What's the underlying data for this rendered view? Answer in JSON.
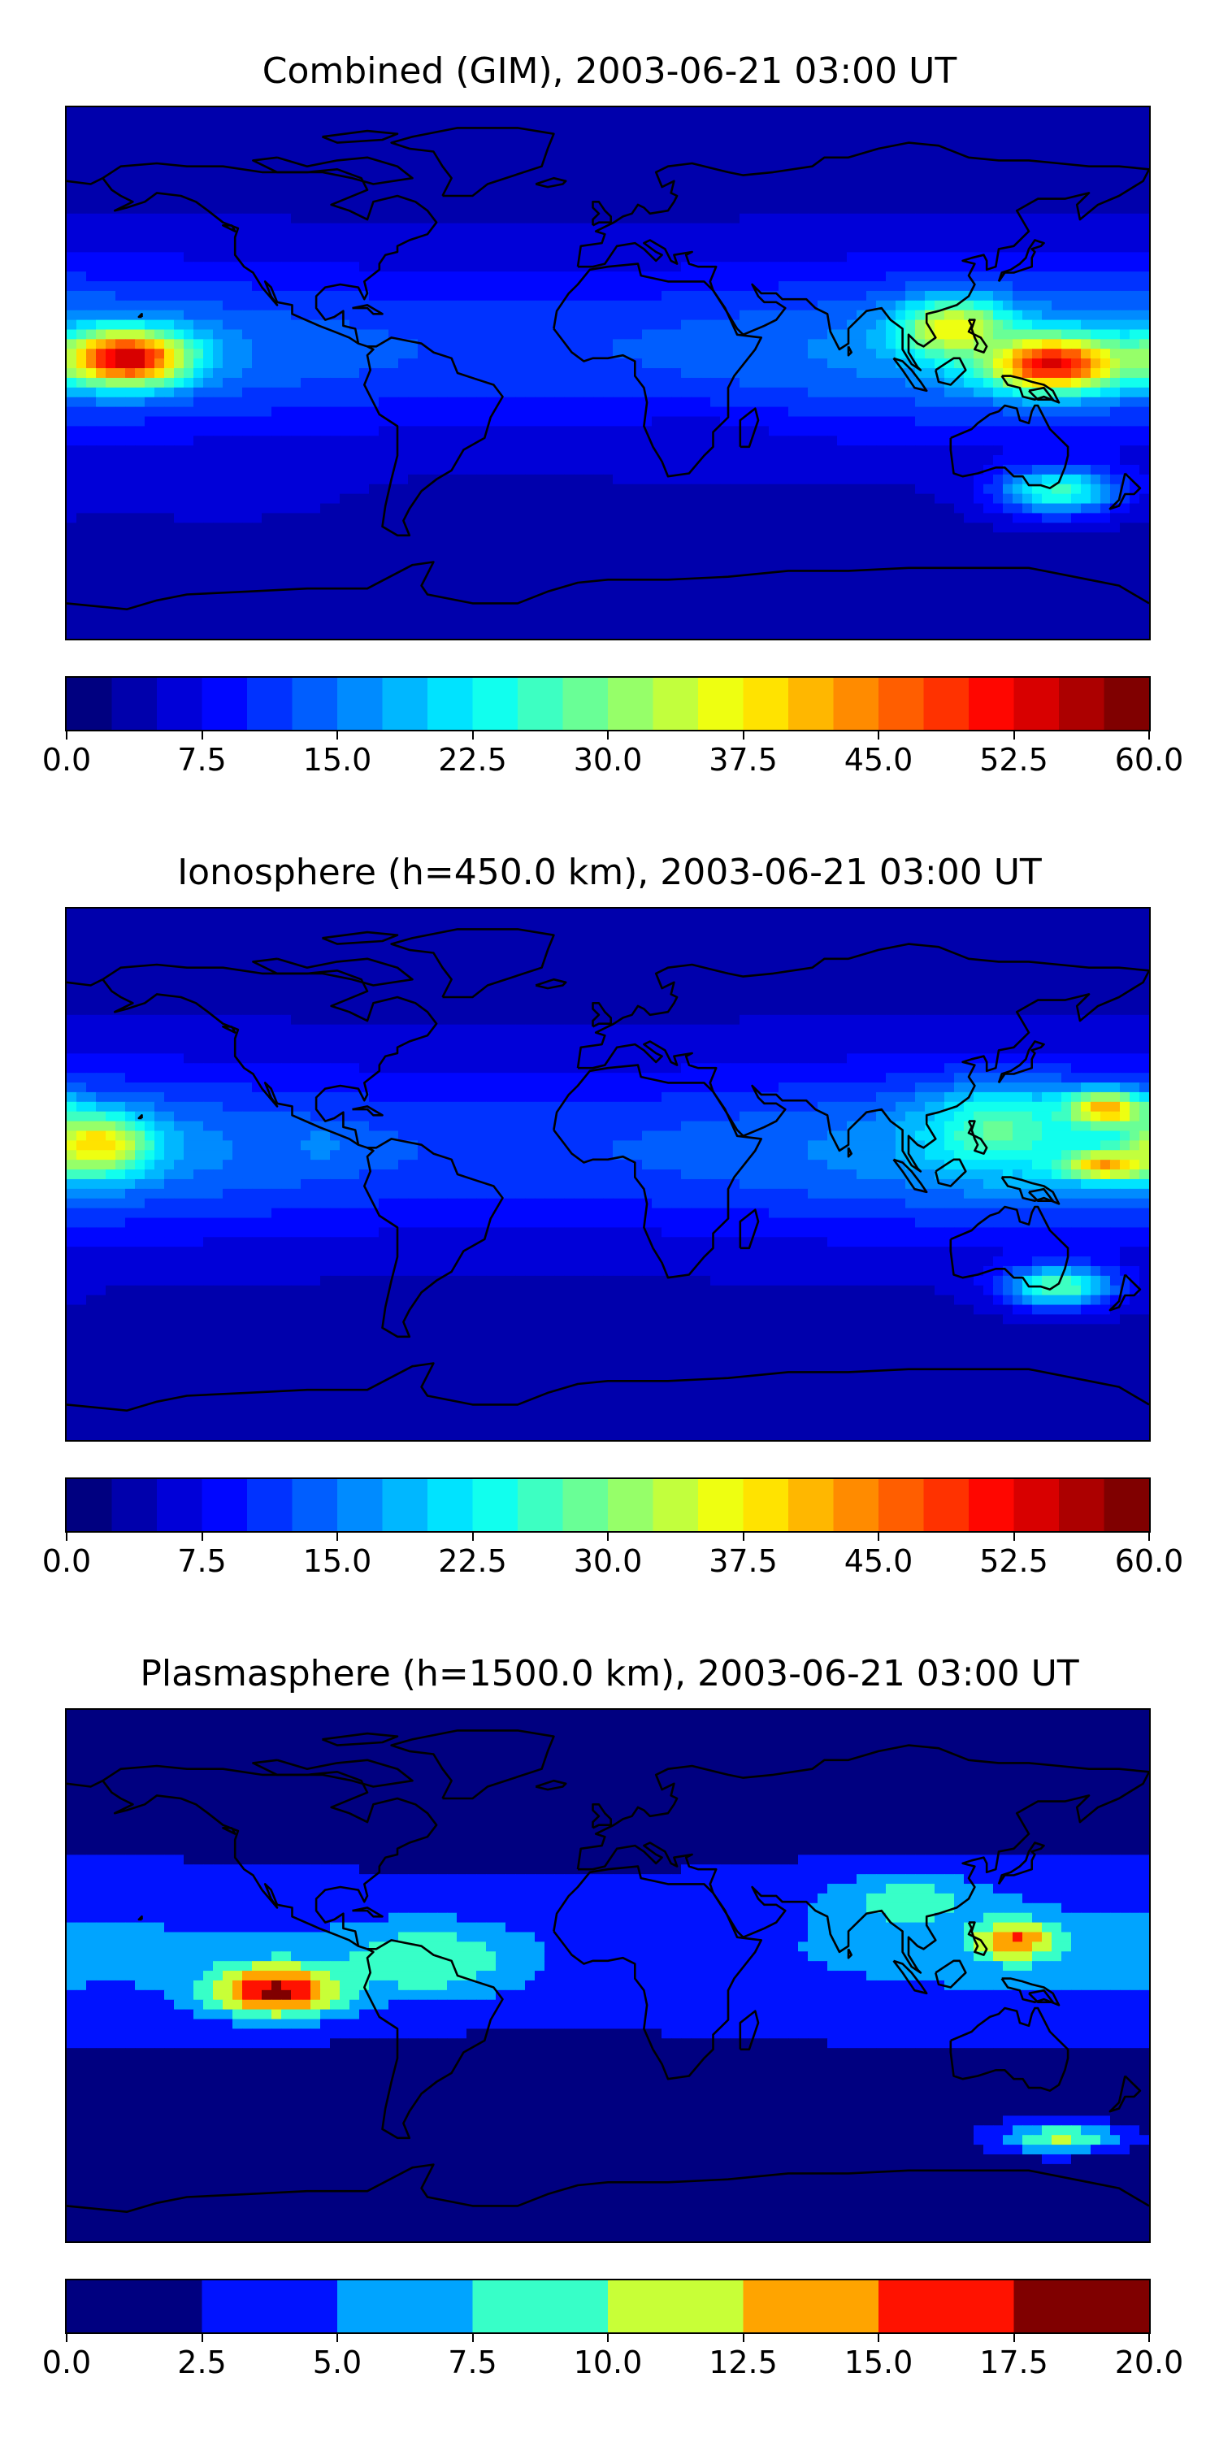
{
  "chart_data": [
    {
      "type": "heatmap",
      "title": "Combined (GIM), 2003-06-21 03:00 UT",
      "colorbar": {
        "vmin": 0.0,
        "vmax": 60.0,
        "levels": 24,
        "ticks": [
          "0.0",
          "7.5",
          "15.0",
          "22.5",
          "30.0",
          "37.5",
          "45.0",
          "52.5",
          "60.0"
        ]
      },
      "features": [
        {
          "lon": -160,
          "lat": 5,
          "value": 56,
          "spread_lon": 20,
          "spread_lat": 9
        },
        {
          "lon": 148,
          "lat": 3,
          "value": 54,
          "spread_lon": 22,
          "spread_lat": 9
        },
        {
          "lon": 115,
          "lat": 15,
          "value": 38,
          "spread_lon": 18,
          "spread_lat": 10
        },
        {
          "lon": -130,
          "lat": -40,
          "value": 6,
          "spread_lon": 40,
          "spread_lat": 10
        },
        {
          "lon": 150,
          "lat": -40,
          "value": 26,
          "spread_lon": 20,
          "spread_lat": 8
        },
        {
          "lon": 30,
          "lat": -25,
          "value": 6,
          "spread_lon": 25,
          "spread_lat": 10
        }
      ]
    },
    {
      "type": "heatmap",
      "title": "Ionosphere  (h=450.0 km), 2003-06-21 03:00 UT",
      "colorbar": {
        "vmin": 0.0,
        "vmax": 60.0,
        "levels": 24,
        "ticks": [
          "0.0",
          "7.5",
          "15.0",
          "22.5",
          "30.0",
          "37.5",
          "45.0",
          "52.5",
          "60.0"
        ]
      },
      "features": [
        {
          "lon": -170,
          "lat": 10,
          "value": 40,
          "spread_lon": 18,
          "spread_lat": 10
        },
        {
          "lon": 165,
          "lat": 22,
          "value": 44,
          "spread_lon": 14,
          "spread_lat": 6
        },
        {
          "lon": 165,
          "lat": 3,
          "value": 44,
          "spread_lon": 14,
          "spread_lat": 5
        },
        {
          "lon": 130,
          "lat": 15,
          "value": 28,
          "spread_lon": 25,
          "spread_lat": 14
        },
        {
          "lon": 150,
          "lat": -38,
          "value": 28,
          "spread_lon": 18,
          "spread_lat": 7
        },
        {
          "lon": -95,
          "lat": 10,
          "value": 16,
          "spread_lon": 10,
          "spread_lat": 6
        }
      ]
    },
    {
      "type": "heatmap",
      "title": "Plasmasphere (h=1500.0 km), 2003-06-21 03:00 UT",
      "colorbar": {
        "vmin": 0.0,
        "vmax": 20.0,
        "levels": 8,
        "ticks": [
          "0.0",
          "2.5",
          "5.0",
          "7.5",
          "10.0",
          "12.5",
          "15.0",
          "17.5",
          "20.0"
        ]
      },
      "features": [
        {
          "lon": -110,
          "lat": -5,
          "value": 18.5,
          "spread_lon": 22,
          "spread_lat": 9
        },
        {
          "lon": 135,
          "lat": 12,
          "value": 15.5,
          "spread_lon": 14,
          "spread_lat": 7
        },
        {
          "lon": -60,
          "lat": 5,
          "value": 10,
          "spread_lon": 30,
          "spread_lat": 12
        },
        {
          "lon": 100,
          "lat": 25,
          "value": 9,
          "spread_lon": 25,
          "spread_lat": 9
        },
        {
          "lon": 150,
          "lat": -55,
          "value": 10.5,
          "spread_lon": 20,
          "spread_lat": 5
        },
        {
          "lon": -40,
          "lat": 75,
          "value": 0.5,
          "spread_lon": 30,
          "spread_lat": 8
        }
      ]
    }
  ]
}
